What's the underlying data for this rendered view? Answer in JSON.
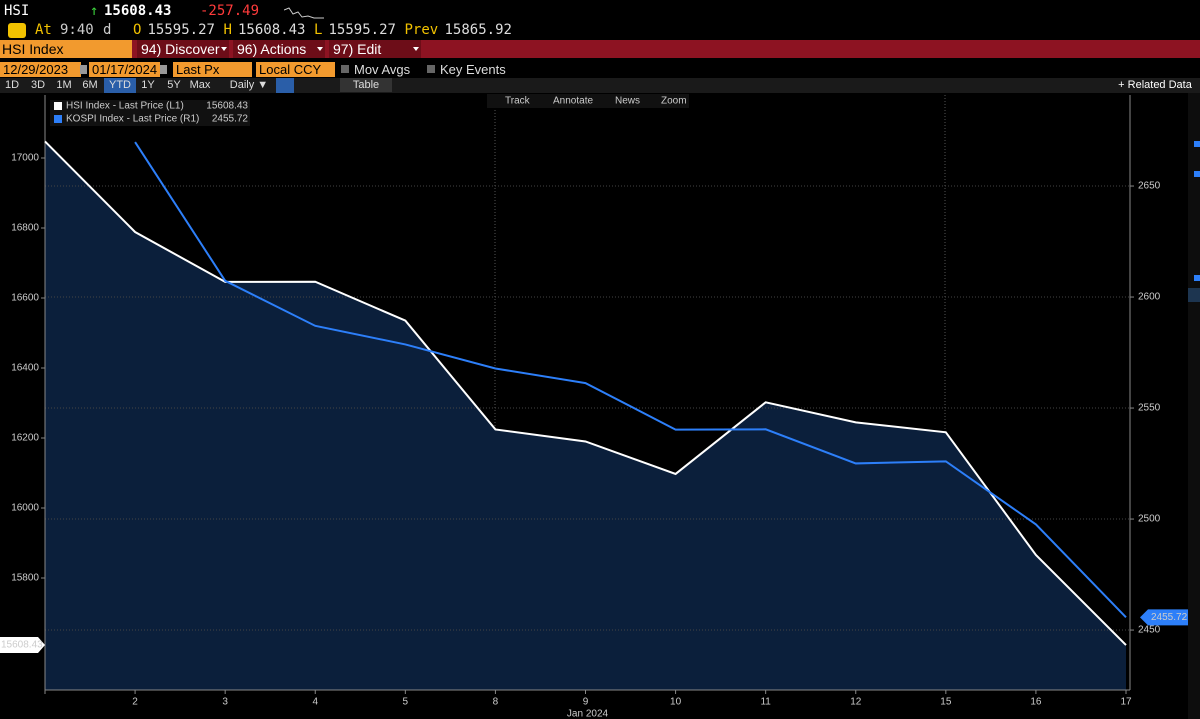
{
  "header": {
    "ticker": "HSI",
    "arrow": "↑",
    "price": "15608.43",
    "change": "-257.49",
    "time_label": "At",
    "time": "9:40",
    "time_suffix": "d",
    "quote": [
      {
        "label": "O",
        "value": "15595.27"
      },
      {
        "label": "H",
        "value": "15608.43"
      },
      {
        "label": "L",
        "value": "15595.27"
      },
      {
        "label": "Prev",
        "value": "15865.92"
      }
    ]
  },
  "menu": {
    "security": "HSI Index",
    "items": [
      "94) Discover",
      "96) Actions",
      "97) Edit"
    ]
  },
  "controls": {
    "start_date": "12/29/2023",
    "end_date": "01/17/2024",
    "field": "Last Px",
    "currency": "Local CCY",
    "options": [
      "Mov Avgs",
      "Key Events"
    ],
    "ranges": [
      "1D",
      "3D",
      "1M",
      "6M",
      "YTD",
      "1Y",
      "5Y",
      "Max"
    ],
    "active_range": "YTD",
    "frequency": "Daily ▼",
    "table": "Table",
    "related": "+ Related Data"
  },
  "toolbar": [
    "Track",
    "Annotate",
    "News",
    "Zoom"
  ],
  "chart_data": {
    "type": "line",
    "x_label": "Jan 2024",
    "categories": [
      null,
      "2",
      "3",
      "4",
      "5",
      "8",
      "9",
      "10",
      "11",
      "12",
      "15",
      "16",
      "17"
    ],
    "series": [
      {
        "name": "HSI Index - Last Price (L1)",
        "color": "#ffffff",
        "fill": "#0b1f3b",
        "values": [
          17047.39,
          16788.55,
          16645.98,
          16646.41,
          16535.33,
          16224.45,
          16190.02,
          16097.28,
          16302.01,
          16244.58,
          16216.33,
          15865.92,
          15608.43
        ]
      },
      {
        "name": "KOSPI Index - Last Price (R1)",
        "color": "#2d7ff9",
        "axis": "y2",
        "values": [
          null,
          2669.81,
          2607.31,
          2587.02,
          2578.65,
          2567.82,
          2561.24,
          2540.27,
          2540.42,
          2525.05,
          2525.99,
          2497.59,
          2455.72
        ]
      }
    ],
    "ylim": [
      15480,
      17180
    ],
    "yticks": [
      15800,
      16000,
      16200,
      16400,
      16600,
      16800,
      17000
    ],
    "y2lim": [
      2423,
      2691
    ],
    "y2ticks": [
      2450,
      2500,
      2550,
      2600,
      2650
    ],
    "legend": "top-left",
    "grid": true
  }
}
